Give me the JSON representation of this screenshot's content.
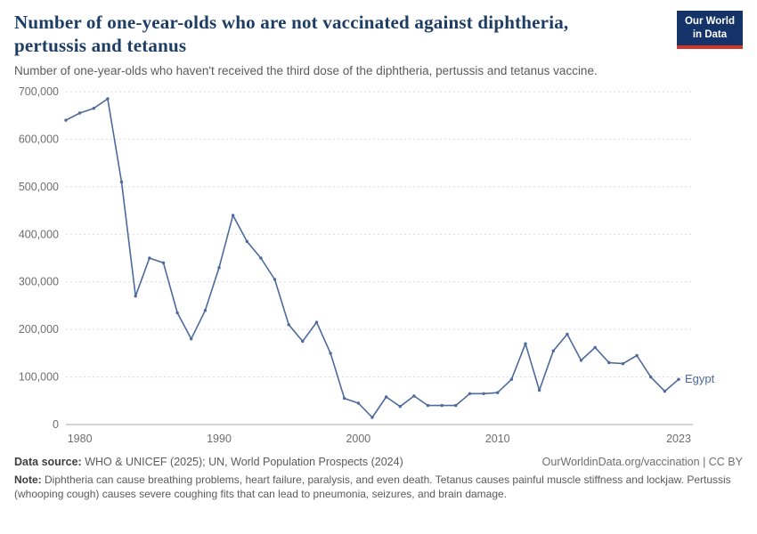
{
  "header": {
    "title": "Number of one-year-olds who are not vaccinated against diphtheria, pertussis and tetanus",
    "subtitle": "Number of one-year-olds who haven't received the third dose of the diphtheria, pertussis and tetanus vaccine.",
    "logo": {
      "line1": "Our World",
      "line2": "in Data"
    }
  },
  "chart_data": {
    "type": "line",
    "title": "Number of one-year-olds who are not vaccinated against diphtheria, pertussis and tetanus",
    "xlabel": "",
    "ylabel": "",
    "xlim": [
      1979,
      2023
    ],
    "ylim": [
      0,
      700000
    ],
    "x_ticks": [
      1980,
      1990,
      2000,
      2010,
      2023
    ],
    "y_ticks": [
      0,
      100000,
      200000,
      300000,
      400000,
      500000,
      600000,
      700000
    ],
    "grid": "dashed-horizontal",
    "legend_position": "end-of-line",
    "series": [
      {
        "name": "Egypt",
        "color": "#4c6a9c",
        "x": [
          1979,
          1980,
          1981,
          1982,
          1983,
          1984,
          1985,
          1986,
          1987,
          1988,
          1989,
          1990,
          1991,
          1992,
          1993,
          1994,
          1995,
          1996,
          1997,
          1998,
          1999,
          2000,
          2001,
          2002,
          2003,
          2004,
          2005,
          2006,
          2007,
          2008,
          2009,
          2010,
          2011,
          2012,
          2013,
          2014,
          2015,
          2016,
          2017,
          2018,
          2019,
          2020,
          2021,
          2022,
          2023
        ],
        "values": [
          640000,
          655000,
          665000,
          685000,
          510000,
          270000,
          350000,
          340000,
          235000,
          180000,
          240000,
          330000,
          440000,
          385000,
          350000,
          305000,
          210000,
          175000,
          215000,
          150000,
          55000,
          45000,
          15000,
          58000,
          38000,
          60000,
          40000,
          40000,
          40000,
          65000,
          65000,
          67000,
          95000,
          170000,
          72000,
          155000,
          190000,
          135000,
          162000,
          130000,
          128000,
          145000,
          100000,
          70000,
          95000
        ]
      }
    ]
  },
  "footer": {
    "source_label": "Data source:",
    "source_text": " WHO & UNICEF (2025); UN, World Population Prospects (2024)",
    "attribution": "OurWorldinData.org/vaccination | CC BY",
    "note_label": "Note:",
    "note_text": " Diphtheria can cause breathing problems, heart failure, paralysis, and even death. Tetanus causes painful muscle stiffness and lockjaw. Pertussis (whooping cough) causes severe coughing fits that can lead to pneumonia, seizures, and brain damage."
  }
}
